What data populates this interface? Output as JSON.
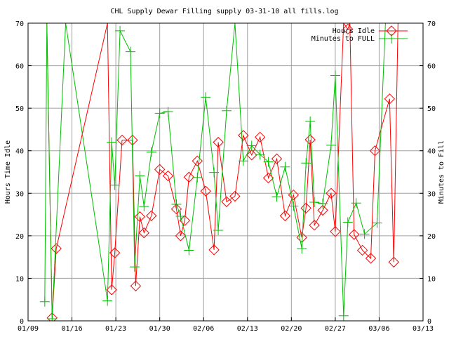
{
  "chart_data": {
    "type": "line",
    "title": "CHL Supply Dewar Filling supply 03-31-10 all fills.log",
    "ylabel_left": "Hours Time Idle",
    "ylabel_right": "Minutes to Fill",
    "xlabel": "",
    "xlim": [
      "01/09",
      "03/13"
    ],
    "ylim": [
      0,
      70
    ],
    "y_ticks": [
      0,
      10,
      20,
      30,
      40,
      50,
      60,
      70
    ],
    "x_ticks": [
      "01/09",
      "01/16",
      "01/23",
      "01/30",
      "02/06",
      "02/13",
      "02/20",
      "02/27",
      "03/06",
      "03/13"
    ],
    "grid": true,
    "legend_position": "top-right",
    "series": [
      {
        "name": "Hours Idle",
        "color": "#ff0000",
        "marker": "diamond",
        "x": [
          "01/12 00:00",
          "01/12 20:00",
          "01/13 12:00",
          "01/21 16:00",
          "01/22 08:00",
          "01/22 20:00",
          "01/24 00:00",
          "01/25 16:00",
          "01/26 04:00",
          "01/26 20:00",
          "01/27 12:00",
          "01/28 16:00",
          "01/30 00:00",
          "01/31 08:00",
          "02/01 16:00",
          "02/02 08:00",
          "02/03 00:00",
          "02/03 16:00",
          "02/05 00:00",
          "02/06 08:00",
          "02/07 16:00",
          "02/08 08:00",
          "02/09 16:00",
          "02/11 00:00",
          "02/12 08:00",
          "02/13 16:00",
          "02/15 00:00",
          "02/16 08:00",
          "02/17 16:00",
          "02/19 00:00",
          "02/20 08:00",
          "02/21 16:00",
          "02/22 08:00",
          "02/23 00:00",
          "02/23 16:00",
          "02/25 00:00",
          "02/26 08:00",
          "02/27 00:00",
          "02/28 08:00",
          "02/29 00:00",
          "03/01 08:00",
          "03/02 00:00",
          "03/03 08:00",
          "03/04 16:00",
          "03/05 08:00",
          "03/07 16:00",
          "03/08 08:00",
          "03/09 00:00",
          "03/09 16:00",
          "03/10 08:00",
          "03/11 16:00"
        ],
        "values": [
          70,
          0.7,
          17,
          70,
          7.3,
          16,
          42.5,
          42.5,
          8.2,
          24.5,
          20.7,
          24.7,
          35.6,
          34.1,
          26.3,
          20,
          23.6,
          33.8,
          37.6,
          30.5,
          16.7,
          42,
          28,
          29.3,
          43.6,
          39,
          43.2,
          33.6,
          38.1,
          24.7,
          29.6,
          19.6,
          26.5,
          42.6,
          22.5,
          26,
          30,
          21,
          70,
          68.6,
          70,
          20.3,
          16.6,
          14.7,
          40,
          52.2,
          13.8,
          70,
          70,
          70,
          70
        ]
      },
      {
        "name": "Minutes to FULL",
        "color": "#00c000",
        "marker": "plus",
        "x": [
          "01/11 16:00",
          "01/12 00:00",
          "01/12 20:00",
          "01/15 00:00",
          "01/21 16:00",
          "01/22 08:00",
          "01/22 20:00",
          "01/23 16:00",
          "01/25 08:00",
          "01/26 00:00",
          "01/26 20:00",
          "01/27 12:00",
          "01/28 16:00",
          "01/30 00:00",
          "01/31 08:00",
          "02/01 16:00",
          "02/02 08:00",
          "02/03 16:00",
          "02/05 00:00",
          "02/06 08:00",
          "02/07 16:00",
          "02/08 08:00",
          "02/09 16:00",
          "02/11 00:00",
          "02/12 08:00",
          "02/13 16:00",
          "02/15 00:00",
          "02/16 08:00",
          "02/17 16:00",
          "02/19 00:00",
          "02/20 08:00",
          "02/21 16:00",
          "02/22 08:00",
          "02/23 00:00",
          "02/23 16:00",
          "02/25 00:00",
          "02/26 08:00",
          "02/27 00:00",
          "02/28 08:00",
          "03/01 00:00",
          "03/02 08:00",
          "03/03 16:00",
          "03/05 16:00",
          "03/07 00:00",
          "03/07 16:00",
          "03/08 08:00",
          "03/09 00:00",
          "03/10 08:00",
          "03/11 16:00"
        ],
        "values": [
          4.5,
          70,
          0.5,
          70,
          4.7,
          42,
          31.9,
          68.2,
          63.3,
          12.7,
          34.1,
          26.9,
          39.7,
          48.8,
          49.2,
          27.4,
          24.6,
          16.6,
          33.7,
          52.6,
          34.9,
          21.3,
          49.4,
          70,
          37.6,
          41.2,
          39.1,
          37.4,
          29.2,
          36.2,
          27,
          17,
          37.1,
          46.9,
          27.9,
          27.6,
          41.3,
          57.7,
          1.2,
          23.2,
          27.7,
          20.4,
          23,
          70,
          70,
          70,
          70,
          70,
          70
        ]
      }
    ]
  }
}
